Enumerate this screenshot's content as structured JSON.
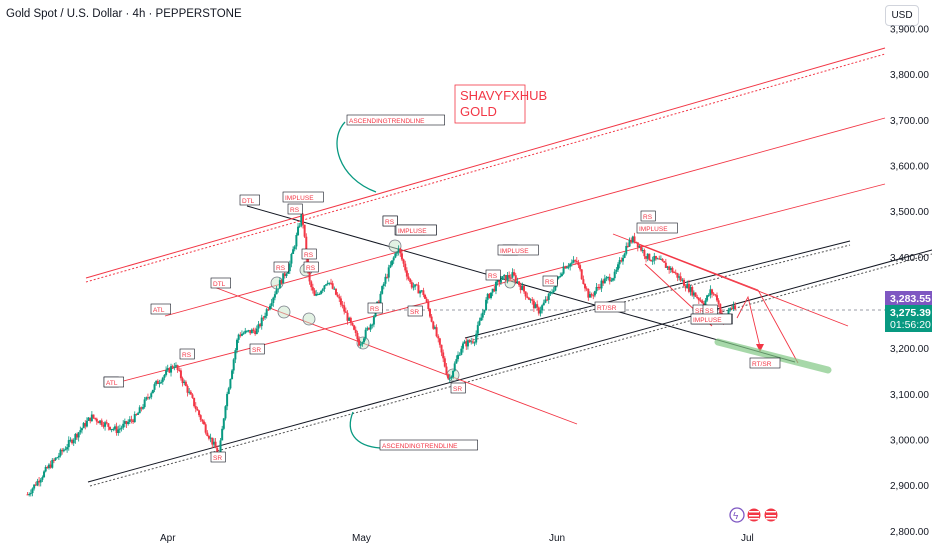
{
  "header": {
    "title": "Gold Spot / U.S. Dollar · 4h · PEPPERSTONE",
    "currency": "USD"
  },
  "watermark": {
    "line1": "SHAVYFXHUB",
    "line2": "GOLD"
  },
  "price_scale": {
    "current_price": "3,283.55",
    "last_price": "3,275.39",
    "countdown": "01:56:20",
    "current_color": "#7e57c2",
    "last_color": "#089981"
  },
  "annotations": [
    "ASCENDINGTRENDLINE",
    "DTL",
    "IMPLUSE",
    "RS",
    "RS",
    "RS",
    "RS",
    "RS",
    "RS",
    "IMPLUSE",
    "RT",
    "RS",
    "IMPLUSE",
    "RS",
    "RS",
    "SR",
    "SR",
    "SR",
    "SR",
    "SR",
    "ATL",
    "RS",
    "ATL",
    "DTL",
    "RS",
    "SR",
    "IMPLUSE",
    "SR",
    "IMPLUSE",
    "RT/SR",
    "RS",
    "IMPLUSE",
    "SS",
    "IMPLUSE",
    "RT/SR",
    "ASCENDINGTRENDLINE"
  ],
  "chart_data": {
    "type": "candlestick",
    "title": "Gold Spot / U.S. Dollar · 4h · PEPPERSTONE",
    "xlabel": "",
    "ylabel": "",
    "x_ticks": [
      "Apr",
      "May",
      "Jun",
      "Jul"
    ],
    "y_ticks": [
      "3,900.00",
      "3,800.00",
      "3,700.00",
      "3,600.00",
      "3,500.00",
      "3,400.00",
      "3,300.00",
      "3,200.00",
      "3,100.00",
      "3,000.00",
      "2,900.00",
      "2,800.00"
    ],
    "ylim": [
      2780,
      3945
    ],
    "colors": {
      "up": "#089981",
      "down": "#f23645",
      "drawing": "#f23645",
      "trend": "#131722"
    },
    "price_path": [
      [
        "Mar 10",
        2880
      ],
      [
        "Mar 13",
        2935
      ],
      [
        "Mar 17",
        3000
      ],
      [
        "Mar 20",
        3050
      ],
      [
        "Mar 24",
        3020
      ],
      [
        "Mar 27",
        3050
      ],
      [
        "Mar 30",
        3120
      ],
      [
        "Apr 2",
        3165
      ],
      [
        "Apr 4",
        3110
      ],
      [
        "Apr 7",
        3020
      ],
      [
        "Apr 9",
        2965
      ],
      [
        "Apr 10",
        3080
      ],
      [
        "Apr 12",
        3230
      ],
      [
        "Apr 15",
        3240
      ],
      [
        "Apr 18",
        3330
      ],
      [
        "Apr 20",
        3380
      ],
      [
        "Apr 22",
        3495
      ],
      [
        "Apr 23",
        3350
      ],
      [
        "Apr 24",
        3310
      ],
      [
        "Apr 26",
        3350
      ],
      [
        "Apr 28",
        3300
      ],
      [
        "Apr 30",
        3240
      ],
      [
        "May 1",
        3210
      ],
      [
        "May 3",
        3260
      ],
      [
        "May 5",
        3350
      ],
      [
        "May 7",
        3420
      ],
      [
        "May 9",
        3340
      ],
      [
        "May 11",
        3320
      ],
      [
        "May 13",
        3230
      ],
      [
        "May 15",
        3130
      ],
      [
        "May 17",
        3205
      ],
      [
        "May 19",
        3220
      ],
      [
        "May 21",
        3310
      ],
      [
        "May 23",
        3350
      ],
      [
        "May 25",
        3360
      ],
      [
        "May 27",
        3320
      ],
      [
        "May 29",
        3280
      ],
      [
        "May 31",
        3320
      ],
      [
        "Jun 2",
        3380
      ],
      [
        "Jun 4",
        3390
      ],
      [
        "Jun 6",
        3310
      ],
      [
        "Jun 8",
        3345
      ],
      [
        "Jun 10",
        3360
      ],
      [
        "Jun 12",
        3430
      ],
      [
        "Jun 13",
        3440
      ],
      [
        "Jun 15",
        3400
      ],
      [
        "Jun 17",
        3390
      ],
      [
        "Jun 19",
        3370
      ],
      [
        "Jun 21",
        3340
      ],
      [
        "Jun 23",
        3310
      ],
      [
        "Jun 24",
        3300
      ],
      [
        "Jun 25",
        3325
      ],
      [
        "Jun 26",
        3310
      ],
      [
        "Jun 27",
        3255
      ],
      [
        "Jun 28",
        3290
      ],
      [
        "Jun 29",
        3283
      ]
    ]
  }
}
